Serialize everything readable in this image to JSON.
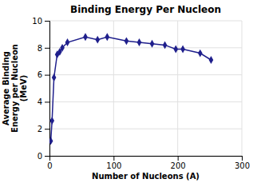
{
  "chart_data": {
    "type": "line",
    "title": "Binding Energy Per Nucleon",
    "xlabel": "Number of Nucleons (A)",
    "ylabel": "Average Binding\nEnergy per Nucleon\n(MeV)",
    "x": [
      2,
      4,
      7,
      12,
      16,
      20,
      28,
      56,
      75,
      90,
      120,
      140,
      160,
      180,
      197,
      208,
      235,
      252
    ],
    "values": [
      1.1,
      2.6,
      5.8,
      7.5,
      7.7,
      8.0,
      8.4,
      8.8,
      8.6,
      8.8,
      8.5,
      8.4,
      8.3,
      8.2,
      7.9,
      7.9,
      7.6,
      7.1
    ],
    "color": "#1f1f8c",
    "marker": "diamond",
    "xlim": [
      0,
      300
    ],
    "ylim": [
      0,
      10
    ],
    "xticks": [
      0,
      100,
      200,
      300
    ],
    "yticks": [
      0,
      2,
      4,
      6,
      8,
      10
    ],
    "grid": true
  }
}
